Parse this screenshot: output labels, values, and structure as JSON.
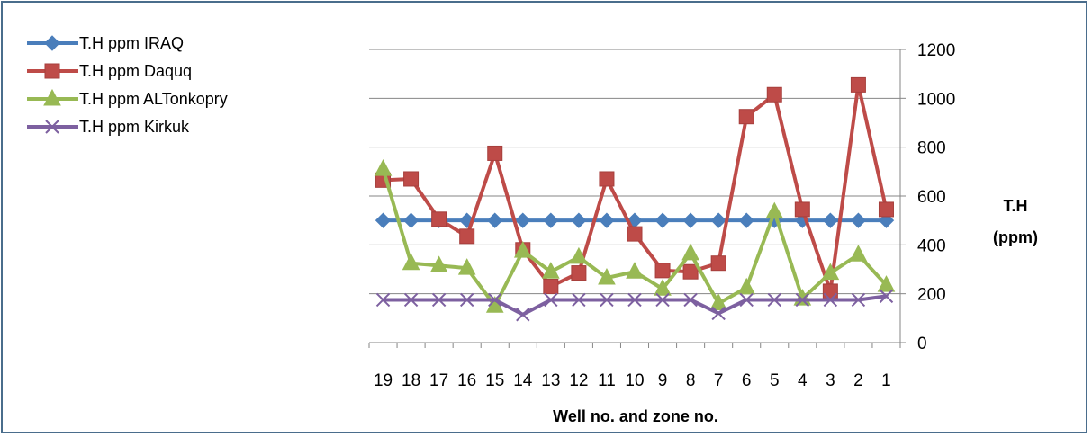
{
  "chart_data": {
    "type": "line",
    "categories": [
      "19",
      "18",
      "17",
      "16",
      "15",
      "14",
      "13",
      "12",
      "11",
      "10",
      "9",
      "8",
      "7",
      "6",
      "5",
      "4",
      "3",
      "2",
      "1"
    ],
    "xlabel": "Well no. and zone no.",
    "ylabel_line1": "T.H",
    "ylabel_line2": "(ppm)",
    "ylim": [
      0,
      1200
    ],
    "yticks": [
      0,
      200,
      400,
      600,
      800,
      1000,
      1200
    ],
    "y_axis_side": "right",
    "grid": true,
    "legend_position": "top-left",
    "series": [
      {
        "name": "T.H ppm IRAQ",
        "color": "#4a7ebb",
        "marker": "diamond",
        "values": [
          500,
          500,
          500,
          500,
          500,
          500,
          500,
          500,
          500,
          500,
          500,
          500,
          500,
          500,
          500,
          500,
          500,
          500,
          500
        ]
      },
      {
        "name": "T.H ppm Daquq",
        "color": "#be4b48",
        "marker": "square",
        "values": [
          665,
          670,
          505,
          435,
          775,
          380,
          230,
          285,
          670,
          445,
          295,
          290,
          325,
          925,
          1015,
          545,
          210,
          1055,
          545
        ]
      },
      {
        "name": "T.H ppm ALTonkopry",
        "color": "#98b954",
        "marker": "triangle",
        "values": [
          710,
          325,
          315,
          305,
          150,
          375,
          290,
          350,
          265,
          290,
          220,
          365,
          160,
          225,
          535,
          180,
          285,
          360,
          235
        ]
      },
      {
        "name": "T.H ppm Kirkuk",
        "color": "#7d60a0",
        "marker": "x",
        "values": [
          175,
          175,
          175,
          175,
          175,
          115,
          175,
          175,
          175,
          175,
          175,
          175,
          120,
          175,
          175,
          175,
          175,
          175,
          190
        ]
      }
    ]
  }
}
